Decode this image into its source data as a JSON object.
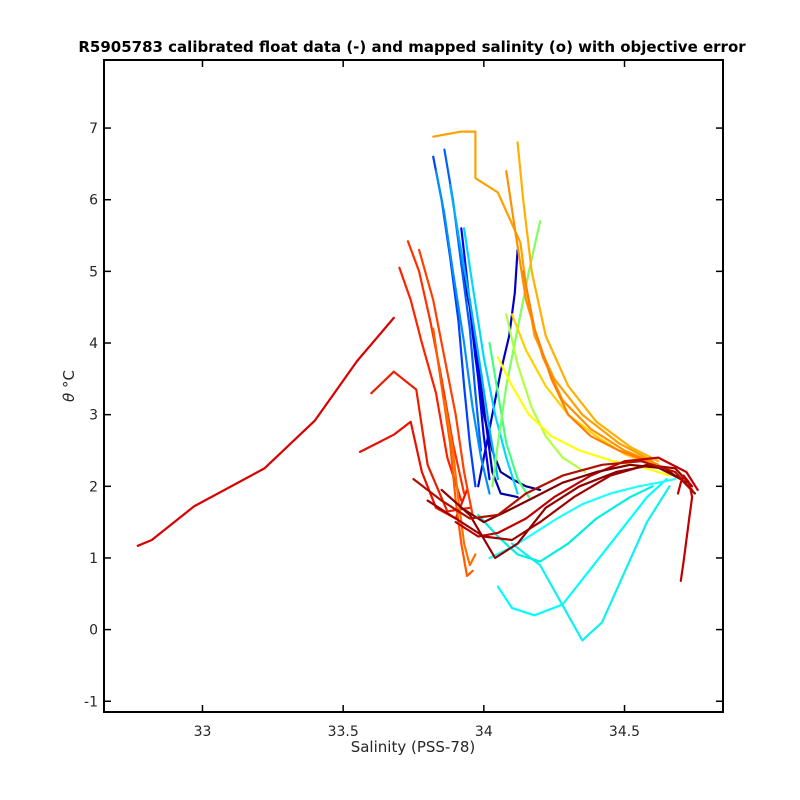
{
  "chart_data": {
    "type": "line",
    "title": "R5905783 calibrated float data (-) and mapped salinity (o) with objective error",
    "xlabel": "Salinity (PSS-78)",
    "ylabel_symbol": "θ",
    "ylabel_unit": "°C",
    "xlim": [
      32.65,
      34.85
    ],
    "ylim": [
      -1.15,
      7.95
    ],
    "xticks": [
      33,
      33.5,
      34,
      34.5
    ],
    "xtick_labels": [
      "33",
      "33.5",
      "34",
      "34.5"
    ],
    "yticks": [
      -1,
      0,
      1,
      2,
      3,
      4,
      5,
      6,
      7
    ],
    "ytick_labels": [
      "-1",
      "0",
      "1",
      "2",
      "3",
      "4",
      "5",
      "6",
      "7"
    ],
    "grid": false,
    "legend": "none",
    "colormap": [
      "#00008f",
      "#0000ff",
      "#0080ff",
      "#00ffff",
      "#80ff80",
      "#ffff00",
      "#ff8000",
      "#ff0000",
      "#800000"
    ],
    "series": [
      {
        "color": "#d80000",
        "x": [
          32.77,
          32.82,
          32.97,
          33.22,
          33.4,
          33.55,
          33.68
        ],
        "y": [
          1.17,
          1.25,
          1.72,
          2.25,
          2.92,
          3.75,
          4.35
        ]
      },
      {
        "color": "#e81000",
        "x": [
          33.56,
          33.68,
          33.74,
          33.78,
          33.83,
          33.9,
          33.94
        ],
        "y": [
          2.48,
          2.72,
          2.9,
          2.2,
          1.7,
          1.55,
          1.95
        ]
      },
      {
        "color": "#e82000",
        "x": [
          33.6,
          33.68,
          33.76,
          33.8,
          33.87,
          33.95
        ],
        "y": [
          3.3,
          3.6,
          3.35,
          2.3,
          1.65,
          1.7
        ]
      },
      {
        "color": "#ff2000",
        "x": [
          33.7,
          33.74,
          33.78,
          33.83,
          33.87,
          33.92
        ],
        "y": [
          5.05,
          4.6,
          4.0,
          3.3,
          2.4,
          1.8
        ]
      },
      {
        "color": "#ff3000",
        "x": [
          33.73,
          33.77,
          33.81,
          33.85,
          33.89,
          33.93
        ],
        "y": [
          5.42,
          5.0,
          4.3,
          3.5,
          2.6,
          1.9
        ]
      },
      {
        "color": "#ff4000",
        "x": [
          33.77,
          33.82,
          33.86,
          33.9,
          33.93,
          33.96
        ],
        "y": [
          5.3,
          4.6,
          3.8,
          3.0,
          2.2,
          1.6
        ]
      },
      {
        "color": "#ff5a00",
        "x": [
          33.82,
          33.85,
          33.88,
          33.9,
          33.92,
          33.94,
          33.96
        ],
        "y": [
          4.2,
          3.4,
          2.6,
          1.8,
          1.2,
          0.75,
          0.82
        ]
      },
      {
        "color": "#ff7000",
        "x": [
          33.86,
          33.89,
          33.91,
          33.93,
          33.95,
          33.97
        ],
        "y": [
          3.2,
          2.5,
          1.8,
          1.2,
          0.9,
          1.05
        ]
      },
      {
        "color": "#00008f",
        "x": [
          33.92,
          33.95,
          33.97,
          34.0,
          34.03,
          34.06,
          34.1,
          34.15,
          34.2
        ],
        "y": [
          5.1,
          4.5,
          3.8,
          3.0,
          2.5,
          2.2,
          2.1,
          2.0,
          1.95
        ]
      },
      {
        "color": "#0000b0",
        "x": [
          33.95,
          33.97,
          33.99,
          34.01,
          34.03,
          34.06,
          34.12
        ],
        "y": [
          4.6,
          4.0,
          3.4,
          2.8,
          2.2,
          1.9,
          1.85
        ]
      },
      {
        "color": "#0000c8",
        "x": [
          34.12,
          34.11,
          34.09,
          34.06,
          34.04,
          34.02,
          34.0,
          33.98
        ],
        "y": [
          5.3,
          4.7,
          4.1,
          3.6,
          3.2,
          2.8,
          2.4,
          2.0
        ]
      },
      {
        "color": "#0000ff",
        "x": [
          33.92,
          33.94,
          33.96,
          33.98,
          34.0,
          34.02
        ],
        "y": [
          5.6,
          4.9,
          4.2,
          3.5,
          2.7,
          2.1
        ]
      },
      {
        "color": "#0040ff",
        "x": [
          33.82,
          33.85,
          33.88,
          33.91,
          33.93,
          33.95,
          33.97
        ],
        "y": [
          6.6,
          6.0,
          5.2,
          4.3,
          3.4,
          2.6,
          2.0
        ]
      },
      {
        "color": "#0060ff",
        "x": [
          33.86,
          33.89,
          33.92,
          33.95,
          33.97,
          33.99
        ],
        "y": [
          6.7,
          6.0,
          5.1,
          4.2,
          3.3,
          2.5
        ]
      },
      {
        "color": "#0090ff",
        "x": [
          33.83,
          33.86,
          33.89,
          33.93,
          33.96,
          33.99,
          34.02
        ],
        "y": [
          6.4,
          5.8,
          5.0,
          4.0,
          3.1,
          2.4,
          1.9
        ]
      },
      {
        "color": "#00b0ff",
        "x": [
          33.88,
          33.91,
          33.95,
          33.99,
          34.02,
          34.05
        ],
        "y": [
          6.2,
          5.5,
          4.6,
          3.6,
          2.8,
          2.1
        ]
      },
      {
        "color": "#00d8ff",
        "x": [
          33.93,
          33.96,
          34.0,
          34.04,
          34.08,
          34.12
        ],
        "y": [
          5.6,
          4.8,
          3.8,
          3.0,
          2.4,
          1.9
        ]
      },
      {
        "color": "#00ffff",
        "x": [
          34.05,
          34.1,
          34.18,
          34.28,
          34.38,
          34.48,
          34.58,
          34.65
        ],
        "y": [
          0.6,
          0.3,
          0.2,
          0.35,
          0.85,
          1.35,
          1.85,
          2.1
        ]
      },
      {
        "color": "#10f0f0",
        "x": [
          34.1,
          34.2,
          34.3,
          34.35,
          34.42,
          34.5,
          34.58,
          34.66
        ],
        "y": [
          1.2,
          0.9,
          0.2,
          -0.15,
          0.1,
          0.8,
          1.5,
          2.0
        ]
      },
      {
        "color": "#20ffff",
        "x": [
          34.02,
          34.1,
          34.18,
          34.26,
          34.35,
          34.45,
          34.55,
          34.62,
          34.68
        ],
        "y": [
          1.0,
          1.15,
          1.35,
          1.55,
          1.75,
          1.9,
          2.0,
          2.05,
          2.1
        ]
      },
      {
        "color": "#00f0e0",
        "x": [
          33.98,
          34.05,
          34.12,
          34.2,
          34.3,
          34.4,
          34.52,
          34.6
        ],
        "y": [
          1.6,
          1.3,
          1.05,
          0.95,
          1.2,
          1.55,
          1.85,
          2.0
        ]
      },
      {
        "color": "#40ff80",
        "x": [
          34.02,
          34.05,
          34.08,
          34.12,
          34.16
        ],
        "y": [
          4.0,
          3.3,
          2.6,
          2.1,
          1.85
        ]
      },
      {
        "color": "#80ff60",
        "x": [
          34.2,
          34.16,
          34.12,
          34.08,
          34.05,
          34.03
        ],
        "y": [
          5.7,
          5.0,
          4.2,
          3.4,
          2.6,
          2.0
        ]
      },
      {
        "color": "#b0ff40",
        "x": [
          34.08,
          34.12,
          34.17,
          34.22,
          34.28,
          34.36
        ],
        "y": [
          4.4,
          3.7,
          3.1,
          2.7,
          2.4,
          2.2
        ]
      },
      {
        "color": "#ffff00",
        "x": [
          34.05,
          34.1,
          34.16,
          34.24,
          34.34,
          34.46,
          34.58,
          34.66
        ],
        "y": [
          3.8,
          3.4,
          3.0,
          2.7,
          2.5,
          2.35,
          2.25,
          2.15
        ]
      },
      {
        "color": "#ffd000",
        "x": [
          34.1,
          34.15,
          34.22,
          34.3,
          34.4,
          34.5,
          34.6
        ],
        "y": [
          4.4,
          3.9,
          3.4,
          3.0,
          2.7,
          2.45,
          2.3
        ]
      },
      {
        "color": "#ffa000",
        "x": [
          33.82,
          33.92,
          33.97,
          33.97,
          34.05,
          34.13,
          34.15,
          34.18,
          34.25,
          34.35,
          34.48,
          34.6
        ],
        "y": [
          6.88,
          6.95,
          6.95,
          6.3,
          6.1,
          5.4,
          4.8,
          4.1,
          3.5,
          3.0,
          2.6,
          2.35
        ]
      },
      {
        "color": "#ffb000",
        "x": [
          34.12,
          34.14,
          34.17,
          34.22,
          34.3,
          34.4,
          34.52,
          34.62
        ],
        "y": [
          6.8,
          6.0,
          5.0,
          4.1,
          3.4,
          2.9,
          2.55,
          2.35
        ]
      },
      {
        "color": "#ff9000",
        "x": [
          34.08,
          34.11,
          34.15,
          34.21,
          34.28,
          34.38,
          34.5,
          34.62
        ],
        "y": [
          6.4,
          5.6,
          4.6,
          3.8,
          3.2,
          2.8,
          2.5,
          2.3
        ]
      },
      {
        "color": "#ff8000",
        "x": [
          34.14,
          34.18,
          34.24,
          34.3,
          34.38,
          34.48,
          34.58
        ],
        "y": [
          5.0,
          4.2,
          3.5,
          3.0,
          2.7,
          2.5,
          2.35
        ]
      },
      {
        "color": "#c00000",
        "x": [
          33.9,
          33.98,
          34.05,
          34.15,
          34.25,
          34.38,
          34.5,
          34.62,
          34.72,
          34.76
        ],
        "y": [
          1.5,
          1.3,
          1.35,
          1.55,
          1.85,
          2.15,
          2.35,
          2.4,
          2.2,
          1.95
        ]
      },
      {
        "color": "#a00000",
        "x": [
          33.8,
          33.9,
          34.0,
          34.1,
          34.2,
          34.32,
          34.45,
          34.58,
          34.68,
          34.74
        ],
        "y": [
          1.8,
          1.55,
          1.3,
          1.25,
          1.5,
          1.85,
          2.15,
          2.3,
          2.25,
          2.0
        ]
      },
      {
        "color": "#900000",
        "x": [
          33.85,
          33.95,
          34.04,
          34.12,
          34.22,
          34.34,
          34.47,
          34.6,
          34.7,
          34.75
        ],
        "y": [
          1.95,
          1.6,
          1.0,
          1.2,
          1.7,
          2.0,
          2.2,
          2.3,
          2.1,
          1.9
        ]
      },
      {
        "color": "#800000",
        "x": [
          33.92,
          34.0,
          34.08,
          34.18,
          34.28,
          34.4,
          34.52,
          34.64,
          34.72
        ],
        "y": [
          1.7,
          1.5,
          1.65,
          1.85,
          2.05,
          2.2,
          2.3,
          2.25,
          2.05
        ]
      },
      {
        "color": "#b01000",
        "x": [
          33.75,
          33.85,
          33.95,
          34.05,
          34.15,
          34.28,
          34.42,
          34.56,
          34.68,
          34.74
        ],
        "y": [
          2.1,
          1.8,
          1.55,
          1.6,
          1.9,
          2.15,
          2.3,
          2.35,
          2.2,
          1.95
        ]
      },
      {
        "color": "#c00000",
        "x": [
          34.7,
          34.71,
          34.72,
          34.73,
          34.74,
          34.73,
          34.71,
          34.7,
          34.69
        ],
        "y": [
          0.68,
          0.95,
          1.25,
          1.55,
          1.85,
          2.05,
          2.15,
          2.05,
          1.9
        ]
      }
    ]
  }
}
